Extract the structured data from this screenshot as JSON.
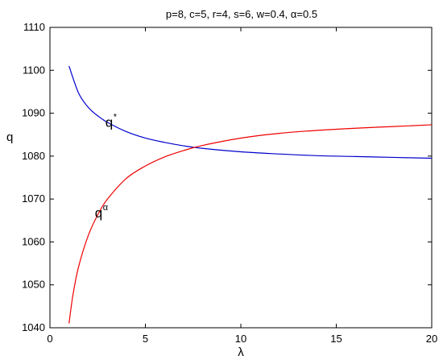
{
  "chart_data": {
    "type": "line",
    "title": "p=8, c=5, r=4, s=6, w=0.4, α=0.5",
    "xlabel": "λ",
    "ylabel": "q",
    "xlim": [
      0,
      20
    ],
    "ylim": [
      1040,
      1110
    ],
    "xticks": [
      "0",
      "5",
      "10",
      "15",
      "20"
    ],
    "yticks": [
      "1040",
      "1050",
      "1060",
      "1070",
      "1080",
      "1090",
      "1100",
      "1110"
    ],
    "grid": false,
    "series": [
      {
        "name": "q*",
        "color": "#0000cc",
        "x": [
          1,
          1.5,
          2,
          2.5,
          3,
          4,
          5,
          6,
          7,
          8,
          10,
          12,
          14,
          16,
          18,
          20
        ],
        "y": [
          1101.0,
          1094.7,
          1091.4,
          1089.4,
          1087.9,
          1085.7,
          1084.2,
          1083.2,
          1082.4,
          1081.8,
          1081.0,
          1080.5,
          1080.1,
          1079.9,
          1079.7,
          1079.5
        ]
      },
      {
        "name": "qα",
        "color": "#ee0000",
        "x": [
          1,
          1.2,
          1.5,
          2,
          2.5,
          3,
          4,
          5,
          6,
          7,
          8,
          10,
          12,
          14,
          16,
          18,
          20
        ],
        "y": [
          1041.0,
          1047.5,
          1054.2,
          1061.4,
          1066.3,
          1069.9,
          1074.8,
          1077.7,
          1079.8,
          1081.3,
          1082.5,
          1084.2,
          1085.3,
          1086.0,
          1086.5,
          1086.9,
          1087.3
        ]
      }
    ],
    "annotations": [
      {
        "base": "q",
        "sup": "*",
        "x": 2.9,
        "y": 1086.8
      },
      {
        "base": "q",
        "sup": "α",
        "x": 2.35,
        "y": 1065.7
      }
    ]
  }
}
